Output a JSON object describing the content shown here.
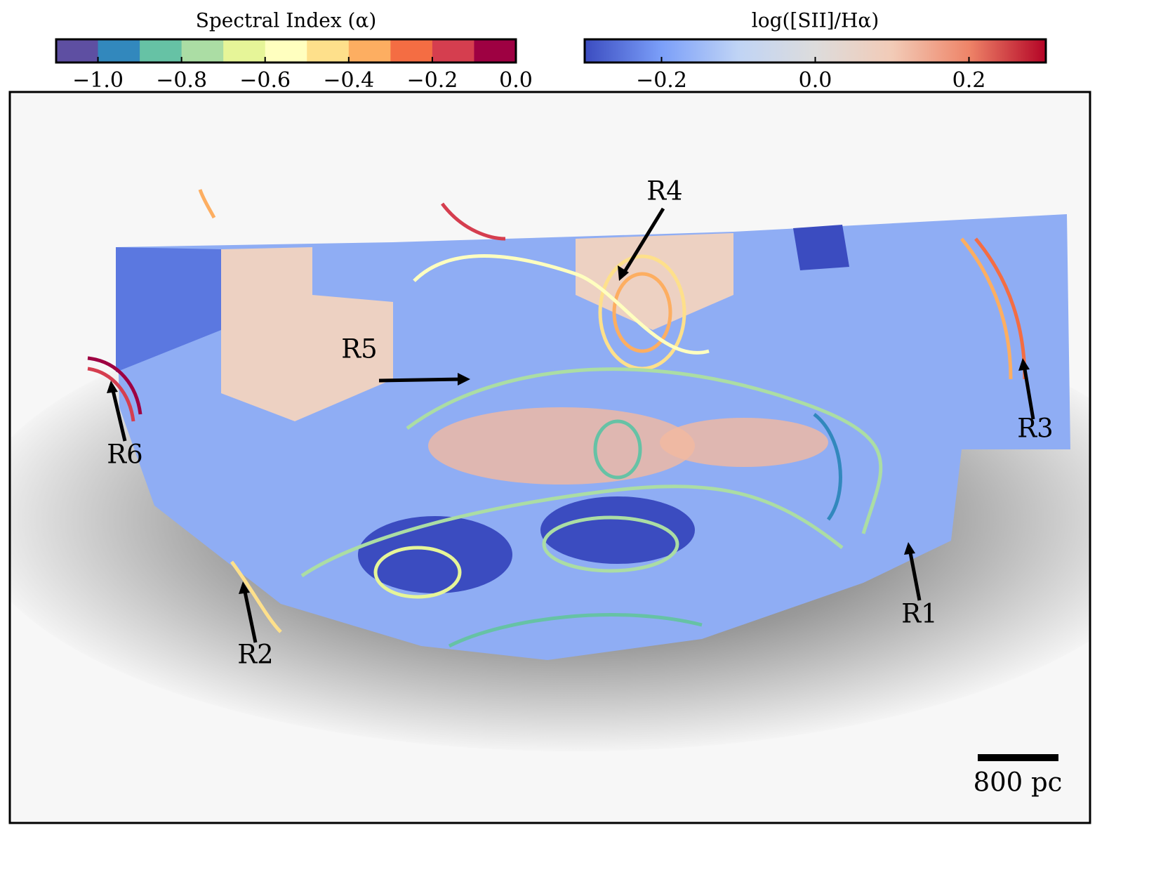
{
  "chart_data": [
    {
      "type": "colorbar",
      "title": "Spectral Index (α)",
      "clim": [
        -1.1,
        0.0
      ],
      "ticks": [
        {
          "value": -1.0,
          "label": "−1.0"
        },
        {
          "value": -0.8,
          "label": "−0.8"
        },
        {
          "value": -0.6,
          "label": "−0.6"
        },
        {
          "value": -0.4,
          "label": "−0.4"
        },
        {
          "value": -0.2,
          "label": "−0.2"
        },
        {
          "value": 0.0,
          "label": "0.0"
        }
      ],
      "colors": [
        "#5e4fa2",
        "#3288bd",
        "#66c2a5",
        "#abdda4",
        "#e6f598",
        "#ffffbf",
        "#fee08b",
        "#fdae61",
        "#f46d43",
        "#d53e4f",
        "#9e0142"
      ]
    },
    {
      "type": "colorbar",
      "title": "log([SII]/Hα)",
      "clim": [
        -0.3,
        0.3
      ],
      "ticks": [
        {
          "value": -0.2,
          "label": "−0.2"
        },
        {
          "value": 0.0,
          "label": "0.0"
        },
        {
          "value": 0.2,
          "label": "0.2"
        }
      ],
      "colors": [
        "#3b4cc0",
        "#7b9ff9",
        "#c0d4f5",
        "#dddcdc",
        "#f2cbb7",
        "#ee8468",
        "#b40426"
      ]
    }
  ],
  "image": {
    "annotations": [
      "R1",
      "R2",
      "R3",
      "R4",
      "R5",
      "R6"
    ],
    "scale_bar": "800 pc"
  }
}
